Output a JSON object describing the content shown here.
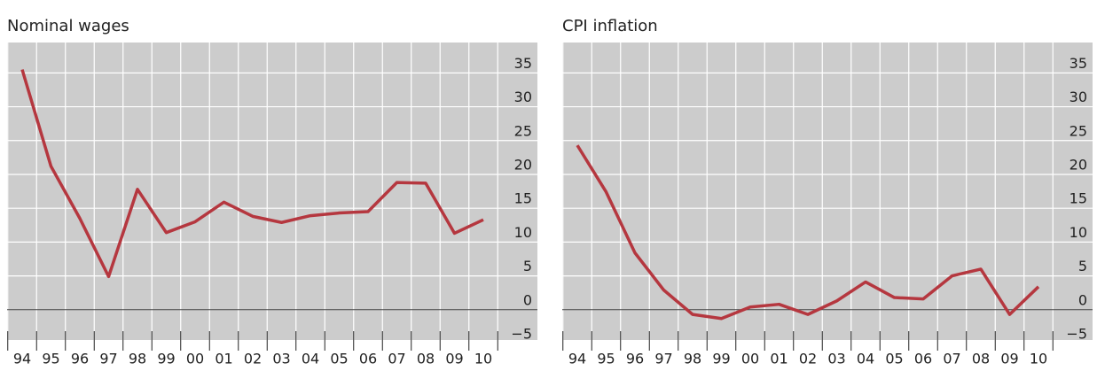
{
  "chart_data": [
    {
      "type": "line",
      "title": "Nominal wages",
      "color": "#b5373f",
      "categories": [
        "94",
        "95",
        "96",
        "97",
        "98",
        "99",
        "00",
        "01",
        "02",
        "03",
        "04",
        "05",
        "06",
        "07",
        "08",
        "09",
        "10"
      ],
      "values": [
        35.5,
        21.2,
        13.5,
        4.9,
        17.8,
        11.4,
        13,
        15.9,
        13.8,
        12.9,
        13.9,
        14.3,
        14.5,
        18.8,
        18.7,
        11.3,
        13.3
      ],
      "ylim": [
        -5,
        39.5
      ],
      "yticks": [
        {
          "value": -5,
          "label": "−5"
        },
        0,
        5,
        10,
        15,
        20,
        25,
        30,
        35
      ],
      "grid": true
    },
    {
      "type": "line",
      "title": "CPI inflation",
      "color": "#b5373f",
      "categories": [
        "94",
        "95",
        "96",
        "97",
        "98",
        "99",
        "00",
        "01",
        "02",
        "03",
        "04",
        "05",
        "06",
        "07",
        "08",
        "09",
        "10"
      ],
      "values": [
        24.3,
        17.4,
        8.4,
        2.9,
        -0.7,
        -1.3,
        0.4,
        0.8,
        -0.7,
        1.3,
        4.1,
        1.8,
        1.6,
        5,
        6,
        -0.7,
        3.4
      ],
      "ylim": [
        -5,
        39.5
      ],
      "yticks": [
        {
          "value": -5,
          "label": "−5"
        },
        0,
        5,
        10,
        15,
        20,
        25,
        30,
        35
      ],
      "grid": true
    }
  ]
}
